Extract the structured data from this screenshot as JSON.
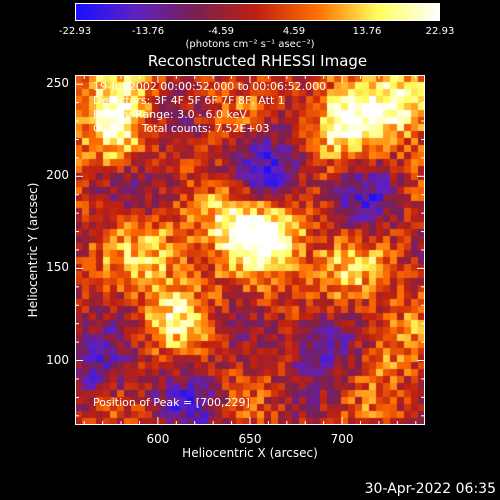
{
  "colorbar": {
    "ticks": [
      "-22.93",
      "-13.76",
      "-4.59",
      "4.59",
      "13.76",
      "22.93"
    ],
    "tick_values": [
      -22.93,
      -13.76,
      -4.59,
      4.59,
      13.76,
      22.93
    ],
    "unit_label": "(photons cm⁻² s⁻¹ asec⁻²)",
    "colors": [
      "#1a10ff",
      "#6020c0",
      "#7a2050",
      "#c02010",
      "#ff7000",
      "#ffff60",
      "#ffffff"
    ]
  },
  "chart_data": {
    "type": "heatmap",
    "title": "Reconstructed RHESSI Image",
    "xlabel": "Heliocentric X (arcsec)",
    "ylabel": "Heliocentric Y (arcsec)",
    "xlim": [
      555,
      745
    ],
    "ylim": [
      65,
      255
    ],
    "xticks": [
      600,
      650,
      700
    ],
    "yticks": [
      100,
      150,
      200,
      250
    ],
    "zlim": [
      -22.93,
      22.93
    ],
    "peak": [
      700,
      229
    ],
    "hotspots": [
      {
        "x": 662,
        "y": 165,
        "value": 22
      },
      {
        "x": 700,
        "y": 229,
        "value": 22.9
      },
      {
        "x": 640,
        "y": 180,
        "value": 17
      },
      {
        "x": 600,
        "y": 160,
        "value": 15
      },
      {
        "x": 735,
        "y": 240,
        "value": 18
      },
      {
        "x": 575,
        "y": 220,
        "value": 14
      },
      {
        "x": 610,
        "y": 125,
        "value": 12
      },
      {
        "x": 700,
        "y": 150,
        "value": 13
      },
      {
        "x": 725,
        "y": 110,
        "value": 10
      },
      {
        "x": 580,
        "y": 250,
        "value": 12
      }
    ],
    "coldspots": [
      {
        "x": 662,
        "y": 203,
        "value": -20
      },
      {
        "x": 690,
        "y": 110,
        "value": -16
      },
      {
        "x": 568,
        "y": 95,
        "value": -14
      },
      {
        "x": 620,
        "y": 75,
        "value": -12
      },
      {
        "x": 710,
        "y": 185,
        "value": -13
      },
      {
        "x": 600,
        "y": 195,
        "value": -10
      }
    ]
  },
  "annotations": {
    "time_range": "19-Jul-2002 00:00:52.000 to 00:06:52.000",
    "detectors": "Detectors: 3F 4F 5F 6F 7F 8F, Att 1",
    "energy": "Energy Range: 3.0 - 6.0 keV",
    "method": "Clean     Total counts: 7.52E+03",
    "peak": "Position of Peak = [700,229]"
  },
  "timestamp": "30-Apr-2022 06:35"
}
